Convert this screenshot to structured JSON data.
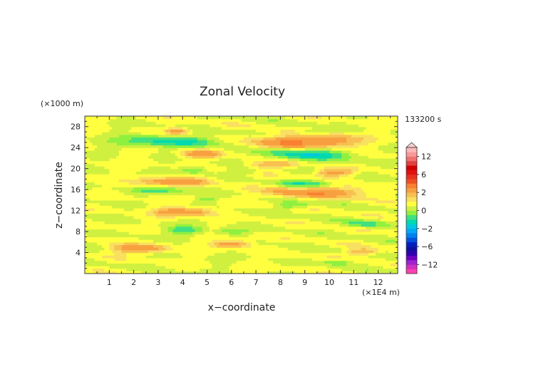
{
  "chart_data": {
    "type": "heatmap",
    "title": "Zonal Velocity",
    "xlabel": "x−coordinate",
    "ylabel": "z−coordinate",
    "x_unit": "(×1E4 m)",
    "y_unit": "(×1000 m)",
    "time_label": "133200 s",
    "xlim": [
      0,
      12.8
    ],
    "ylim": [
      0,
      30
    ],
    "x_ticks": [
      "1",
      "2",
      "3",
      "4",
      "5",
      "6",
      "7",
      "8",
      "9",
      "10",
      "11",
      "12"
    ],
    "y_ticks": [
      "4",
      "8",
      "12",
      "16",
      "20",
      "24",
      "28"
    ],
    "colorbar": {
      "levels": [
        -16,
        -14,
        -12,
        -10,
        -8,
        -7,
        -6,
        -5,
        -4,
        -3,
        -2,
        -1.5,
        -1,
        -0.5,
        0,
        0.5,
        1,
        1.5,
        2,
        3,
        4,
        5,
        6,
        7,
        8,
        10,
        12,
        14,
        16
      ],
      "colors": [
        "#ff40b0",
        "#d030c0",
        "#a020d0",
        "#7000c0",
        "#3000b0",
        "#1010a0",
        "#0020c0",
        "#0050e0",
        "#0080f0",
        "#00a8f8",
        "#00c8e0",
        "#00d8b0",
        "#40e080",
        "#90f040",
        "#d0f040",
        "#ffff40",
        "#f8e060",
        "#f8c050",
        "#f8a040",
        "#f88030",
        "#f05020",
        "#e83020",
        "#e01010",
        "#d00000",
        "#e04040",
        "#f07070",
        "#f89898",
        "#ffb8b8"
      ],
      "tick_labels": [
        "12",
        "6",
        "2",
        "0",
        "−2",
        "−6",
        "−12"
      ],
      "tick_values": [
        12,
        6,
        2,
        0,
        -2,
        -6,
        -12
      ]
    },
    "features": [
      {
        "x0": 7.0,
        "x1": 11.2,
        "zc": 25.1,
        "h": 1.6,
        "v": 2.8
      },
      {
        "x0": 1.3,
        "x1": 5.6,
        "zc": 25.3,
        "h": 1.3,
        "v": -1.6
      },
      {
        "x0": 7.3,
        "x1": 11.0,
        "zc": 23.0,
        "h": 1.7,
        "v": -1.8
      },
      {
        "x0": 3.9,
        "x1": 5.5,
        "zc": 22.8,
        "h": 1.0,
        "v": 1.8
      },
      {
        "x0": 3.3,
        "x1": 4.3,
        "zc": 27.2,
        "h": 0.8,
        "v": 1.7
      },
      {
        "x0": 8.6,
        "x1": 10.0,
        "zc": 27.0,
        "h": 0.7,
        "v": -1.0
      },
      {
        "x0": 9.4,
        "x1": 11.0,
        "zc": 19.3,
        "h": 0.9,
        "v": 1.9
      },
      {
        "x0": 6.5,
        "x1": 8.8,
        "zc": 20.8,
        "h": 0.9,
        "v": 1.5
      },
      {
        "x0": 3.9,
        "x1": 5.0,
        "zc": 19.8,
        "h": 0.8,
        "v": -1.2
      },
      {
        "x0": 2.0,
        "x1": 5.3,
        "zc": 17.6,
        "h": 1.0,
        "v": 1.8
      },
      {
        "x0": 8.0,
        "x1": 10.2,
        "zc": 17.2,
        "h": 0.9,
        "v": -1.4
      },
      {
        "x0": 7.4,
        "x1": 11.6,
        "zc": 15.6,
        "h": 1.2,
        "v": 2.2
      },
      {
        "x0": 2.0,
        "x1": 4.2,
        "zc": 15.9,
        "h": 0.8,
        "v": -1.2
      },
      {
        "x0": 2.8,
        "x1": 5.2,
        "zc": 11.8,
        "h": 1.0,
        "v": 2.1
      },
      {
        "x0": 7.8,
        "x1": 9.2,
        "zc": 13.0,
        "h": 0.8,
        "v": -1.1
      },
      {
        "x0": 3.3,
        "x1": 4.9,
        "zc": 8.4,
        "h": 0.9,
        "v": -1.3
      },
      {
        "x0": 5.3,
        "x1": 6.7,
        "zc": 8.1,
        "h": 0.7,
        "v": -1.0
      },
      {
        "x0": 10.6,
        "x1": 12.2,
        "zc": 9.5,
        "h": 0.9,
        "v": -1.2
      },
      {
        "x0": 1.0,
        "x1": 3.4,
        "zc": 4.8,
        "h": 1.0,
        "v": 2.0
      },
      {
        "x0": 5.2,
        "x1": 6.8,
        "zc": 5.7,
        "h": 0.9,
        "v": 1.8
      },
      {
        "x0": 10.7,
        "x1": 12.0,
        "zc": 4.2,
        "h": 0.8,
        "v": 1.7
      },
      {
        "x0": 9.7,
        "x1": 11.0,
        "zc": 2.2,
        "h": 0.6,
        "v": -0.9
      },
      {
        "x0": 4.6,
        "x1": 5.4,
        "zc": 14.3,
        "h": 0.6,
        "v": -0.8
      },
      {
        "x0": 5.8,
        "x1": 7.2,
        "zc": 19.6,
        "h": 0.8,
        "v": -0.8
      }
    ]
  }
}
